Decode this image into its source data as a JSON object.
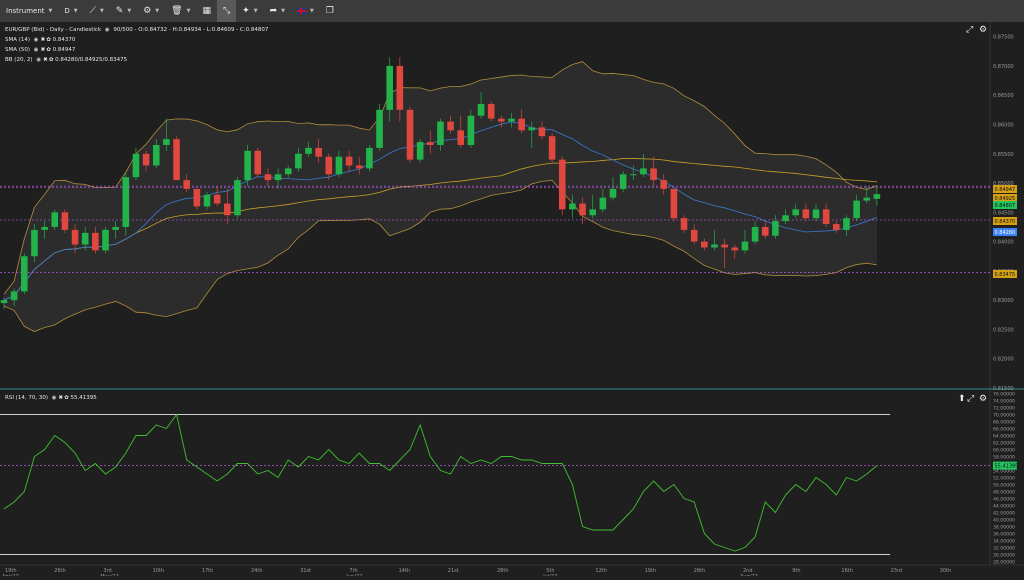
{
  "toolbar": {
    "instrument_label": "Instrument",
    "timeframe_label": "D",
    "icons": [
      "line-tool-icon",
      "pencil-icon",
      "indicator-icon",
      "delete-icon",
      "layout-icon",
      "expand-icon",
      "brush-icon",
      "share-icon",
      "flag-uk-icon",
      "window-icon"
    ]
  },
  "legend": {
    "title": "EUR/GBP (Bid) - Daily - Candlestick",
    "ohlc": "90/500 - O:0.84732 - H:0.84934 - L:0.84609 - C:0.84807",
    "sma14_label": "SMA (14)",
    "sma14_value": "0.84370",
    "sma50_label": "SMA (50)",
    "sma50_value": "0.84947",
    "bb_label": "BB (20, 2)",
    "bb_value": "0.84280/0.84925/0.83475",
    "rsi_label": "RSI (14, 70, 30)",
    "rsi_value": "55.41395"
  },
  "price_axis": [
    "0.87500",
    "0.87000",
    "0.86500",
    "0.86000",
    "0.85500",
    "0.85000",
    "0.84500",
    "0.84000",
    "0.83500",
    "0.83000",
    "0.82500",
    "0.82000",
    "0.81500"
  ],
  "price_badges": [
    {
      "text": "0.84947",
      "color": "#d4a017",
      "text_color": "#111"
    },
    {
      "text": "0.84925",
      "color": "#d4a017",
      "text_color": "#111"
    },
    {
      "text": "0.84807",
      "color": "#22c55e",
      "text_color": "#111"
    },
    {
      "text": "0.84370",
      "color": "#d4a017",
      "text_color": "#111"
    },
    {
      "text": "0.84280",
      "color": "#3b82f6",
      "text_color": "#fff"
    },
    {
      "text": "0.83475",
      "color": "#d4a017",
      "text_color": "#111"
    }
  ],
  "rsi_axis": [
    "76.00000",
    "74.00000",
    "72.00000",
    "70.00000",
    "68.00000",
    "66.00000",
    "64.00000",
    "62.00000",
    "60.00000",
    "58.00000",
    "56.00000",
    "54.00000",
    "52.00000",
    "50.00000",
    "48.00000",
    "46.00000",
    "44.00000",
    "42.00000",
    "40.00000",
    "38.00000",
    "36.00000",
    "34.00000",
    "32.00000",
    "30.00000",
    "28.00000"
  ],
  "rsi_badge": {
    "text": "55.41395",
    "color": "#22c55e"
  },
  "x_axis": [
    {
      "top": "19th",
      "bottom": "Apr/22"
    },
    {
      "top": "26th",
      "bottom": ""
    },
    {
      "top": "3rd",
      "bottom": "May/22"
    },
    {
      "top": "10th",
      "bottom": ""
    },
    {
      "top": "17th",
      "bottom": ""
    },
    {
      "top": "24th",
      "bottom": ""
    },
    {
      "top": "31st",
      "bottom": ""
    },
    {
      "top": "7th",
      "bottom": "Jun/22"
    },
    {
      "top": "14th",
      "bottom": ""
    },
    {
      "top": "21st",
      "bottom": ""
    },
    {
      "top": "28th",
      "bottom": ""
    },
    {
      "top": "5th",
      "bottom": "Jul/22"
    },
    {
      "top": "12th",
      "bottom": ""
    },
    {
      "top": "19th",
      "bottom": ""
    },
    {
      "top": "26th",
      "bottom": ""
    },
    {
      "top": "2nd",
      "bottom": "Aug/22"
    },
    {
      "top": "9th",
      "bottom": ""
    },
    {
      "top": "16th",
      "bottom": ""
    },
    {
      "top": "23rd",
      "bottom": ""
    },
    {
      "top": "30th",
      "bottom": ""
    }
  ],
  "colors": {
    "up": "#22b34b",
    "down": "#e0473e",
    "sma14": "#3a7bd5",
    "sma50": "#c9a227",
    "bb": "#b08d3c",
    "rsi": "#3fbf2f",
    "level": "#b55ce0"
  },
  "chart_data": {
    "type": "candlestick",
    "ylim": [
      0.815,
      0.8775
    ],
    "candles": [
      [
        0.8295,
        0.8305,
        0.8285,
        0.83
      ],
      [
        0.83,
        0.832,
        0.829,
        0.8315
      ],
      [
        0.8315,
        0.838,
        0.831,
        0.8375
      ],
      [
        0.8375,
        0.843,
        0.8365,
        0.842
      ],
      [
        0.842,
        0.8435,
        0.8405,
        0.8425
      ],
      [
        0.8425,
        0.8455,
        0.842,
        0.845
      ],
      [
        0.845,
        0.8455,
        0.8415,
        0.842
      ],
      [
        0.842,
        0.843,
        0.838,
        0.8395
      ],
      [
        0.8395,
        0.8425,
        0.8385,
        0.8415
      ],
      [
        0.8415,
        0.8425,
        0.838,
        0.8385
      ],
      [
        0.8385,
        0.8425,
        0.838,
        0.842
      ],
      [
        0.842,
        0.8435,
        0.8405,
        0.8425
      ],
      [
        0.8425,
        0.852,
        0.841,
        0.851
      ],
      [
        0.851,
        0.856,
        0.8505,
        0.855
      ],
      [
        0.855,
        0.8555,
        0.852,
        0.853
      ],
      [
        0.853,
        0.8575,
        0.8525,
        0.8565
      ],
      [
        0.8565,
        0.861,
        0.8555,
        0.8575
      ],
      [
        0.8575,
        0.858,
        0.8505,
        0.8505
      ],
      [
        0.8505,
        0.8515,
        0.8485,
        0.849
      ],
      [
        0.849,
        0.849,
        0.8455,
        0.846
      ],
      [
        0.846,
        0.8485,
        0.8455,
        0.848
      ],
      [
        0.848,
        0.8495,
        0.846,
        0.8465
      ],
      [
        0.8465,
        0.849,
        0.843,
        0.8445
      ],
      [
        0.8445,
        0.851,
        0.844,
        0.8505
      ],
      [
        0.8505,
        0.8565,
        0.8495,
        0.8555
      ],
      [
        0.8555,
        0.856,
        0.851,
        0.8515
      ],
      [
        0.8515,
        0.8525,
        0.8495,
        0.8505
      ],
      [
        0.8505,
        0.8525,
        0.849,
        0.8515
      ],
      [
        0.8515,
        0.853,
        0.851,
        0.8525
      ],
      [
        0.8525,
        0.856,
        0.852,
        0.855
      ],
      [
        0.855,
        0.857,
        0.8545,
        0.856
      ],
      [
        0.856,
        0.8575,
        0.8535,
        0.8545
      ],
      [
        0.8545,
        0.855,
        0.8505,
        0.8515
      ],
      [
        0.8515,
        0.8555,
        0.851,
        0.8545
      ],
      [
        0.8545,
        0.8555,
        0.852,
        0.853
      ],
      [
        0.853,
        0.8545,
        0.8515,
        0.8525
      ],
      [
        0.8525,
        0.8565,
        0.852,
        0.856
      ],
      [
        0.856,
        0.8635,
        0.8555,
        0.8625
      ],
      [
        0.8625,
        0.8715,
        0.8605,
        0.87
      ],
      [
        0.87,
        0.8715,
        0.8605,
        0.8625
      ],
      [
        0.8625,
        0.863,
        0.8535,
        0.854
      ],
      [
        0.854,
        0.8575,
        0.8535,
        0.857
      ],
      [
        0.857,
        0.859,
        0.855,
        0.8565
      ],
      [
        0.8565,
        0.861,
        0.8555,
        0.8605
      ],
      [
        0.8605,
        0.8615,
        0.8585,
        0.859
      ],
      [
        0.859,
        0.8615,
        0.856,
        0.8565
      ],
      [
        0.8565,
        0.8625,
        0.856,
        0.8615
      ],
      [
        0.8615,
        0.8655,
        0.861,
        0.8635
      ],
      [
        0.8635,
        0.864,
        0.8605,
        0.861
      ],
      [
        0.861,
        0.8615,
        0.8595,
        0.8605
      ],
      [
        0.8605,
        0.862,
        0.8595,
        0.861
      ],
      [
        0.861,
        0.8625,
        0.8585,
        0.859
      ],
      [
        0.859,
        0.8605,
        0.856,
        0.8595
      ],
      [
        0.8595,
        0.8605,
        0.8575,
        0.858
      ],
      [
        0.858,
        0.8585,
        0.8535,
        0.854
      ],
      [
        0.854,
        0.8545,
        0.8445,
        0.8455
      ],
      [
        0.8455,
        0.848,
        0.844,
        0.8465
      ],
      [
        0.8465,
        0.8475,
        0.843,
        0.8445
      ],
      [
        0.8445,
        0.848,
        0.844,
        0.8455
      ],
      [
        0.8455,
        0.849,
        0.845,
        0.8475
      ],
      [
        0.8475,
        0.851,
        0.847,
        0.849
      ],
      [
        0.849,
        0.852,
        0.8485,
        0.8515
      ],
      [
        0.8515,
        0.853,
        0.8505,
        0.8515
      ],
      [
        0.8515,
        0.855,
        0.851,
        0.8525
      ],
      [
        0.8525,
        0.8545,
        0.8495,
        0.8505
      ],
      [
        0.8505,
        0.8515,
        0.848,
        0.849
      ],
      [
        0.849,
        0.849,
        0.8435,
        0.844
      ],
      [
        0.844,
        0.8445,
        0.8415,
        0.842
      ],
      [
        0.842,
        0.843,
        0.8395,
        0.84
      ],
      [
        0.84,
        0.8405,
        0.8385,
        0.839
      ],
      [
        0.839,
        0.842,
        0.8385,
        0.8395
      ],
      [
        0.8395,
        0.8405,
        0.8355,
        0.839
      ],
      [
        0.839,
        0.8395,
        0.837,
        0.8385
      ],
      [
        0.8385,
        0.842,
        0.838,
        0.84
      ],
      [
        0.84,
        0.8435,
        0.8395,
        0.8425
      ],
      [
        0.8425,
        0.8435,
        0.8405,
        0.841
      ],
      [
        0.841,
        0.8445,
        0.8405,
        0.8435
      ],
      [
        0.8435,
        0.8455,
        0.843,
        0.8445
      ],
      [
        0.8445,
        0.8465,
        0.844,
        0.8455
      ],
      [
        0.8455,
        0.8465,
        0.8435,
        0.844
      ],
      [
        0.844,
        0.8465,
        0.8435,
        0.8455
      ],
      [
        0.8455,
        0.8465,
        0.8425,
        0.843
      ],
      [
        0.843,
        0.8435,
        0.8415,
        0.842
      ],
      [
        0.842,
        0.8445,
        0.841,
        0.844
      ],
      [
        0.844,
        0.848,
        0.8435,
        0.847
      ],
      [
        0.847,
        0.8495,
        0.8465,
        0.8475
      ],
      [
        0.8473,
        0.8493,
        0.8461,
        0.8481
      ]
    ],
    "rsi": [
      43,
      45,
      48,
      58,
      60,
      64,
      62,
      59,
      54,
      56,
      53,
      55,
      59,
      64,
      64,
      67,
      66,
      70,
      57,
      55,
      53,
      51,
      53,
      56,
      56,
      53,
      54,
      52,
      57,
      55,
      58,
      57,
      60,
      57,
      56,
      59,
      56,
      56,
      54,
      57,
      60,
      67,
      58,
      54,
      53,
      58,
      56,
      57,
      56,
      58,
      58,
      57,
      57,
      56,
      56,
      56,
      50,
      38,
      37,
      37,
      37,
      40,
      43,
      48,
      51,
      48,
      50,
      46,
      45,
      36,
      33,
      32,
      31,
      32,
      35,
      45,
      42,
      47,
      50,
      48,
      52,
      50,
      47,
      52,
      51,
      53,
      55.4
    ]
  }
}
